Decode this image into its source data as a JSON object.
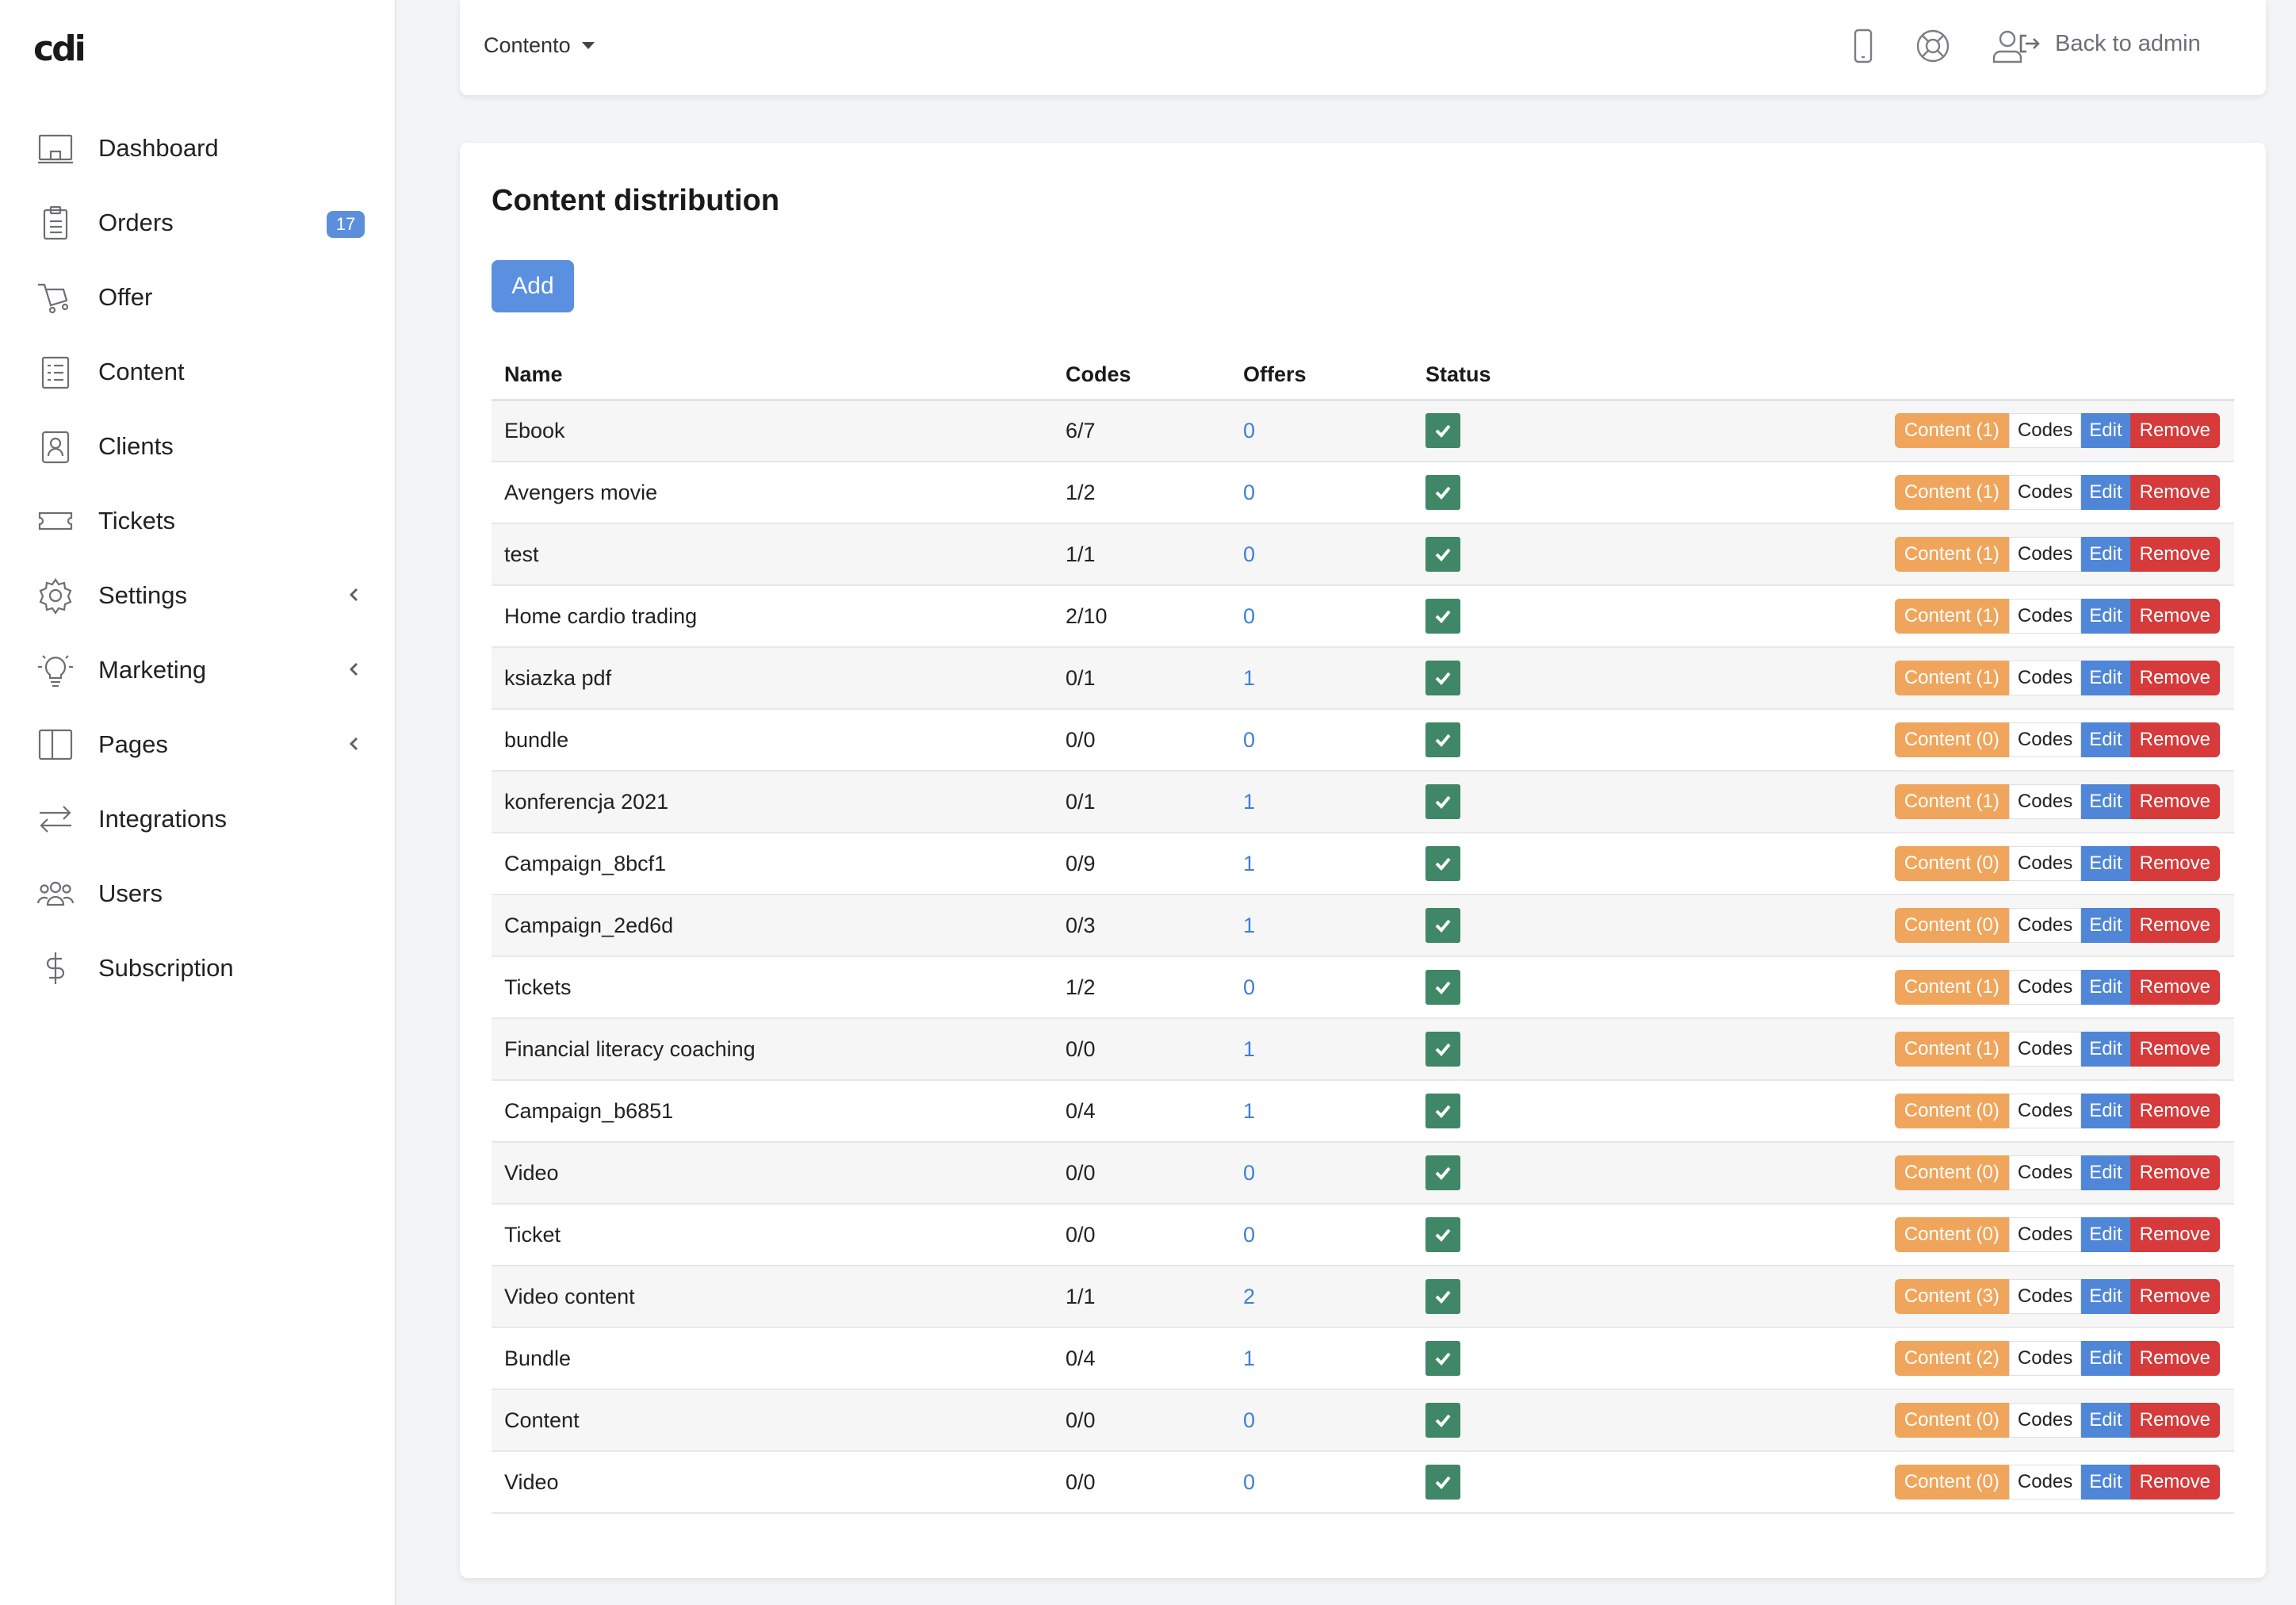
{
  "sidebar": {
    "logo": "cdi",
    "items": [
      {
        "label": "Dashboard",
        "icon": "dashboard-icon"
      },
      {
        "label": "Orders",
        "icon": "orders-icon",
        "badge": "17"
      },
      {
        "label": "Offer",
        "icon": "cart-icon"
      },
      {
        "label": "Content",
        "icon": "content-icon"
      },
      {
        "label": "Clients",
        "icon": "clients-icon"
      },
      {
        "label": "Tickets",
        "icon": "ticket-icon"
      },
      {
        "label": "Settings",
        "icon": "gear-icon",
        "expandable": true
      },
      {
        "label": "Marketing",
        "icon": "lightbulb-icon",
        "expandable": true
      },
      {
        "label": "Pages",
        "icon": "pages-icon",
        "expandable": true
      },
      {
        "label": "Integrations",
        "icon": "arrows-icon"
      },
      {
        "label": "Users",
        "icon": "users-icon"
      },
      {
        "label": "Subscription",
        "icon": "dollar-icon"
      }
    ]
  },
  "topbar": {
    "store": "Contento",
    "icons": [
      "mobile-icon",
      "lifebuoy-icon",
      "user-icon"
    ],
    "back_label": "Back to admin"
  },
  "main": {
    "title": "Content distribution",
    "add_label": "Add",
    "columns": [
      "Name",
      "Codes",
      "Offers",
      "Status"
    ],
    "actions": {
      "codes": "Codes",
      "edit": "Edit",
      "remove": "Remove"
    },
    "rows": [
      {
        "name": "Ebook",
        "codes": "6/7",
        "offers": "0",
        "content": "Content (1)"
      },
      {
        "name": "Avengers movie",
        "codes": "1/2",
        "offers": "0",
        "content": "Content (1)"
      },
      {
        "name": "test",
        "codes": "1/1",
        "offers": "0",
        "content": "Content (1)"
      },
      {
        "name": "Home cardio trading",
        "codes": "2/10",
        "offers": "0",
        "content": "Content (1)"
      },
      {
        "name": "ksiazka pdf",
        "codes": "0/1",
        "offers": "1",
        "content": "Content (1)"
      },
      {
        "name": "bundle",
        "codes": "0/0",
        "offers": "0",
        "content": "Content (0)"
      },
      {
        "name": "konferencja 2021",
        "codes": "0/1",
        "offers": "1",
        "content": "Content (1)"
      },
      {
        "name": "Campaign_8bcf1",
        "codes": "0/9",
        "offers": "1",
        "content": "Content (0)"
      },
      {
        "name": "Campaign_2ed6d",
        "codes": "0/3",
        "offers": "1",
        "content": "Content (0)"
      },
      {
        "name": "Tickets",
        "codes": "1/2",
        "offers": "0",
        "content": "Content (1)"
      },
      {
        "name": "Financial literacy coaching",
        "codes": "0/0",
        "offers": "1",
        "content": "Content (1)"
      },
      {
        "name": "Campaign_b6851",
        "codes": "0/4",
        "offers": "1",
        "content": "Content (0)"
      },
      {
        "name": "Video",
        "codes": "0/0",
        "offers": "0",
        "content": "Content (0)"
      },
      {
        "name": "Ticket",
        "codes": "0/0",
        "offers": "0",
        "content": "Content (0)"
      },
      {
        "name": "Video content",
        "codes": "1/1",
        "offers": "2",
        "content": "Content (3)"
      },
      {
        "name": "Bundle",
        "codes": "0/4",
        "offers": "1",
        "content": "Content (2)"
      },
      {
        "name": "Content",
        "codes": "0/0",
        "offers": "0",
        "content": "Content (0)"
      },
      {
        "name": "Video",
        "codes": "0/0",
        "offers": "0",
        "content": "Content (0)"
      }
    ]
  },
  "colors": {
    "accent": "#5b8fe0",
    "status_ok": "#3f8767",
    "content_btn": "#f0a55c",
    "edit_btn": "#4f86d8",
    "remove_btn": "#d63a3a",
    "badge": "#5b8fd9"
  }
}
